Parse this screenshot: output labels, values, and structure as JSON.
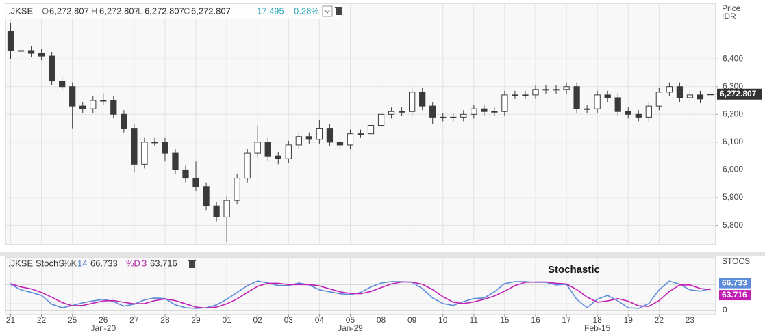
{
  "chart_data": [
    {
      "type": "candlestick",
      "header": {
        "symbol": ".JKSE",
        "fields": [
          {
            "label": "O",
            "value": "6,272.807"
          },
          {
            "label": "H",
            "value": "6,272.807"
          },
          {
            "label": "L",
            "value": "6,272.807"
          },
          {
            "label": "C",
            "value": "6,272.807"
          }
        ],
        "change": "17.495",
        "change_pct": "0.28%"
      },
      "y_title": "Price",
      "y_unit": "IDR",
      "categories": [
        "21",
        null,
        null,
        "22",
        null,
        null,
        "25",
        null,
        null,
        "26",
        null,
        null,
        "27",
        null,
        null,
        "28",
        null,
        null,
        "29",
        null,
        null,
        "01",
        null,
        null,
        "02",
        null,
        null,
        "03",
        null,
        null,
        "04",
        null,
        null,
        "05",
        null,
        null,
        "08",
        null,
        null,
        "09",
        null,
        null,
        "10",
        null,
        null,
        "11",
        null,
        null,
        "15",
        null,
        null,
        "16",
        null,
        null,
        "17",
        null,
        null,
        "18",
        null,
        null,
        "19",
        null,
        null,
        "22",
        null,
        null,
        "23",
        null,
        null
      ],
      "month_labels": [
        {
          "index": 9,
          "label": "Jan-20"
        },
        {
          "index": 33,
          "label": "Jan-29"
        },
        {
          "index": 57,
          "label": "Feb-15"
        }
      ],
      "open": [
        6500,
        6430,
        6430,
        6420,
        6410,
        6320,
        6300,
        6230,
        6220,
        6250,
        6250,
        6200,
        6150,
        6020,
        6100,
        6100,
        6060,
        6000,
        5970,
        5940,
        5870,
        5830,
        5890,
        5970,
        6060,
        6100,
        6050,
        6040,
        6090,
        6120,
        6110,
        6150,
        6100,
        6090,
        6130,
        6130,
        6160,
        6200,
        6210,
        6210,
        6280,
        6230,
        6190,
        6190,
        6190,
        6200,
        6220,
        6210,
        6210,
        6270,
        6270,
        6270,
        6290,
        6290,
        6290,
        6300,
        6220,
        6220,
        6270,
        6260,
        6210,
        6200,
        6190,
        6230,
        6280,
        6300,
        6260,
        6270,
        6272.807
      ],
      "high": [
        6530,
        6445,
        6445,
        6435,
        6425,
        6335,
        6315,
        6245,
        6265,
        6275,
        6265,
        6215,
        6165,
        6115,
        6115,
        6115,
        6075,
        6015,
        6030,
        5955,
        5885,
        5905,
        5985,
        6075,
        6160,
        6115,
        6065,
        6105,
        6135,
        6135,
        6180,
        6165,
        6115,
        6145,
        6145,
        6175,
        6215,
        6225,
        6225,
        6295,
        6295,
        6245,
        6205,
        6205,
        6215,
        6235,
        6235,
        6225,
        6285,
        6285,
        6285,
        6305,
        6305,
        6305,
        6315,
        6315,
        6235,
        6285,
        6285,
        6275,
        6225,
        6215,
        6245,
        6295,
        6315,
        6315,
        6285,
        6285,
        6272.807
      ],
      "low": [
        6400,
        6415,
        6405,
        6395,
        6305,
        6285,
        6150,
        6205,
        6205,
        6235,
        6185,
        6135,
        5990,
        6005,
        6085,
        6030,
        5985,
        5955,
        5925,
        5855,
        5815,
        5740,
        5875,
        5955,
        6045,
        6030,
        6020,
        6025,
        6075,
        6095,
        6095,
        6085,
        6070,
        6075,
        6115,
        6115,
        6145,
        6185,
        6195,
        6195,
        6215,
        6165,
        6175,
        6175,
        6175,
        6185,
        6195,
        6195,
        6195,
        6255,
        6255,
        6255,
        6275,
        6275,
        6275,
        6205,
        6205,
        6205,
        6245,
        6195,
        6185,
        6175,
        6175,
        6215,
        6265,
        6245,
        6245,
        6240,
        6272.807
      ],
      "close": [
        6430,
        6430,
        6420,
        6410,
        6320,
        6300,
        6230,
        6220,
        6250,
        6250,
        6200,
        6150,
        6020,
        6100,
        6100,
        6060,
        6000,
        5970,
        5940,
        5870,
        5830,
        5890,
        5970,
        6060,
        6100,
        6050,
        6040,
        6090,
        6120,
        6110,
        6150,
        6100,
        6090,
        6130,
        6130,
        6160,
        6200,
        6210,
        6210,
        6280,
        6230,
        6190,
        6190,
        6190,
        6200,
        6220,
        6210,
        6210,
        6270,
        6270,
        6270,
        6290,
        6290,
        6290,
        6300,
        6220,
        6220,
        6270,
        6260,
        6210,
        6200,
        6190,
        6230,
        6280,
        6300,
        6260,
        6270,
        6255.312,
        6272.807
      ],
      "color": "#3a3a3a",
      "up_fill": "#ffffff",
      "last_price": {
        "value": 6272.807,
        "label": "6,272.807"
      },
      "ylim": [
        5730,
        6600
      ],
      "yticks": [
        {
          "value": 5800,
          "label": "5,800"
        },
        {
          "value": 5900,
          "label": "5,900"
        },
        {
          "value": 6000,
          "label": "6,000"
        },
        {
          "value": 6100,
          "label": "6,100"
        },
        {
          "value": 6200,
          "label": "6,200"
        },
        {
          "value": 6300,
          "label": "6,300"
        },
        {
          "value": 6400,
          "label": "6,400"
        }
      ],
      "grid": true
    },
    {
      "type": "line",
      "header": {
        "symbol": ".JKSE",
        "study": "StochS",
        "k_label": "%K",
        "k_period": "14",
        "k_value": "66.733",
        "d_label": "%D",
        "d_period": "3",
        "d_value": "63.716"
      },
      "y_title": "STOCS",
      "annotation": "Stochastic",
      "series": [
        {
          "name": "%K",
          "color": "#5b8bd9",
          "values": [
            80,
            63,
            55,
            46,
            19,
            8,
            15,
            23,
            29,
            34,
            27,
            13,
            19,
            32,
            38,
            36,
            17,
            8,
            6,
            8,
            17,
            34,
            55,
            76,
            90,
            84,
            76,
            76,
            84,
            78,
            63,
            57,
            51,
            48,
            55,
            72,
            84,
            88,
            88,
            86,
            67,
            38,
            21,
            15,
            27,
            36,
            38,
            57,
            82,
            88,
            88,
            86,
            86,
            78,
            80,
            34,
            8,
            34,
            46,
            29,
            8,
            6,
            21,
            63,
            90,
            80,
            63,
            59,
            66.733
          ]
        },
        {
          "name": "%D",
          "color": "#c21fb4",
          "values": [
            82,
            72,
            66,
            55,
            40,
            24,
            14,
            15,
            22,
            29,
            30,
            25,
            20,
            21,
            30,
            35,
            30,
            20,
            10,
            7,
            10,
            20,
            35,
            55,
            74,
            83,
            83,
            79,
            79,
            79,
            75,
            66,
            57,
            52,
            51,
            58,
            70,
            81,
            87,
            87,
            80,
            64,
            42,
            25,
            21,
            26,
            34,
            44,
            59,
            76,
            86,
            87,
            87,
            83,
            81,
            64,
            41,
            25,
            29,
            36,
            28,
            14,
            12,
            30,
            58,
            78,
            78,
            67,
            63.716
          ]
        }
      ],
      "levels": [
        20,
        80
      ],
      "ylim": [
        -13,
        164
      ],
      "yticks": [
        0
      ],
      "grid": true
    }
  ]
}
